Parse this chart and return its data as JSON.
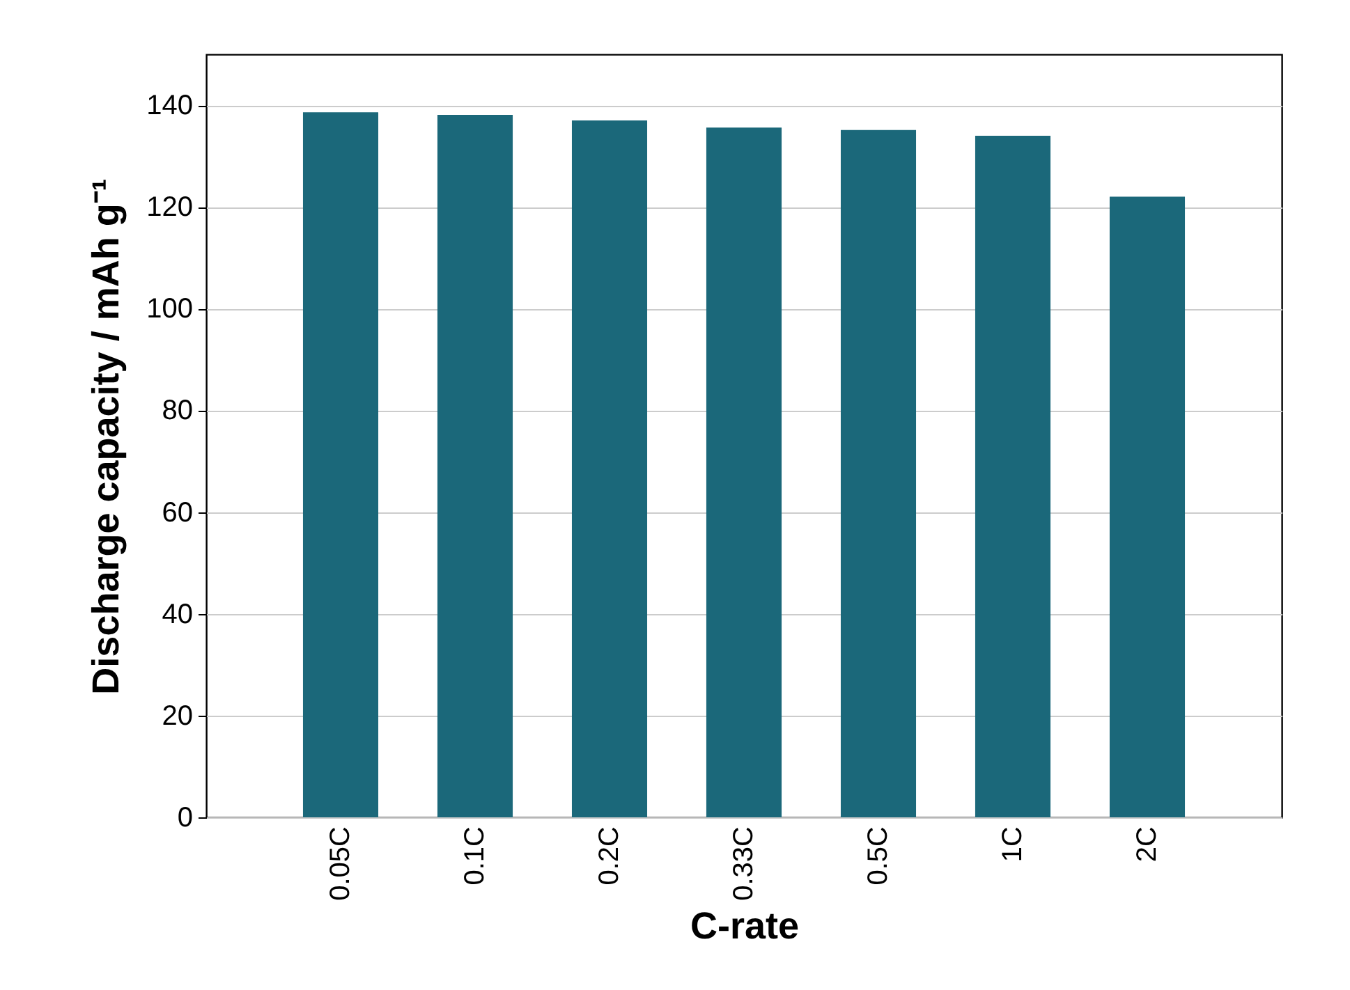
{
  "chart_data": {
    "type": "bar",
    "xlabel": "C-rate",
    "ylabel": "Discharge capacity / mAh g⁻¹",
    "categories": [
      "0.05C",
      "0.1C",
      "0.2C",
      "0.33C",
      "0.5C",
      "1C",
      "2C"
    ],
    "values": [
      138.6,
      138.1,
      137.0,
      135.6,
      135.1,
      134.0,
      122.0
    ],
    "color": "#1b687a",
    "ylim": [
      0,
      150
    ],
    "yticks": [
      0,
      20,
      40,
      60,
      80,
      100,
      120,
      140
    ],
    "grid": "y"
  }
}
